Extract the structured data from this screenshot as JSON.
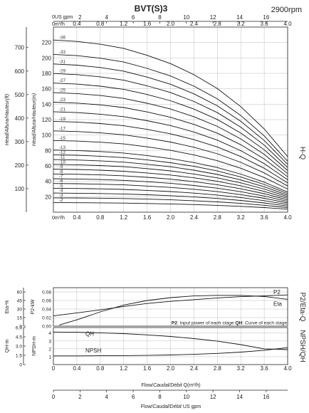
{
  "page": {
    "title": "BVT(S)3",
    "speed": "2900rpm"
  },
  "chart_data": [
    {
      "type": "line",
      "name": "H-Q",
      "side_label": "H-Q",
      "x_units_label": "0m³/h",
      "x_secondary_units_label": "0US gpm",
      "ylabel_metric": "Head/Altura/Hauteur(m)",
      "ylabel_imperial": "Head/Altura/Hauteur(ft)",
      "xlim": [
        0,
        4.0
      ],
      "ylim": [
        0,
        240
      ],
      "ylim_ft": [
        0,
        787
      ],
      "x_ticks": [
        "0.4",
        "0.8",
        "1.2",
        "1.6",
        "2.0",
        "2.4",
        "2.8",
        "3.2",
        "3.6",
        "4.0"
      ],
      "gpm_ticks": [
        "2",
        "4",
        "6",
        "8",
        "10",
        "12",
        "14",
        "16"
      ],
      "gpm_tick_values": [
        2,
        4,
        6,
        8,
        10,
        12,
        14,
        16
      ],
      "y_ticks": [
        20,
        40,
        60,
        80,
        100,
        120,
        140,
        160,
        180,
        200,
        220
      ],
      "ft_ticks": [
        100,
        200,
        300,
        400,
        500,
        600,
        700
      ],
      "grid": true,
      "head_per_stage": {
        "q": [
          0,
          0.4,
          0.8,
          1.2,
          1.6,
          2.0,
          2.4,
          2.8,
          3.2,
          3.6,
          4.0
        ],
        "h": [
          6.2,
          6.15,
          6.05,
          5.9,
          5.65,
          5.35,
          4.95,
          4.45,
          3.8,
          3.0,
          2.0
        ]
      },
      "stages": [
        "-2",
        "-3",
        "-4",
        "-5",
        "-6",
        "-7",
        "-8",
        "-9",
        "-10",
        "-11",
        "-12",
        "-13",
        "-15",
        "-17",
        "-19",
        "-21",
        "-23",
        "-25",
        "-27",
        "-29",
        "-31",
        "-33",
        "-36"
      ]
    },
    {
      "type": "line",
      "name": "P2/Eta-Q",
      "side_label": "P2/Eta-Q",
      "ylabel_eta": "Eta-%",
      "ylabel_p2": "P2-kW",
      "eta_ticks": [
        0,
        15,
        30,
        45,
        60
      ],
      "p2_ticks": [
        "0.00",
        "0.02",
        "0.04",
        "0.06",
        "0.08"
      ],
      "ylim_p2": [
        0,
        0.09
      ],
      "ylim_eta": [
        0,
        67.5
      ],
      "note_p2_key": "P2",
      "note_p2_text": ": Input power of each stage",
      "note_qh_key": "QH",
      "note_qh_text": ": Curve of each stage",
      "series": [
        {
          "name": "P2",
          "x": [
            0,
            0.4,
            0.8,
            1.2,
            1.6,
            2.0,
            2.4,
            2.8,
            3.2,
            3.6,
            4.0
          ],
          "y": [
            0.024,
            0.031,
            0.038,
            0.046,
            0.053,
            0.058,
            0.062,
            0.066,
            0.069,
            0.071,
            0.073
          ]
        },
        {
          "name": "Eta",
          "x": [
            0.1,
            0.4,
            0.8,
            1.2,
            1.6,
            2.0,
            2.4,
            2.8,
            3.2,
            3.6,
            4.0
          ],
          "y": [
            2,
            11,
            25,
            37,
            45,
            50,
            53,
            54,
            54,
            52,
            47
          ]
        }
      ]
    },
    {
      "type": "line",
      "name": "NPSH/QH",
      "side_label": "NPSH/QH",
      "ylabel_qh": "QH-m",
      "ylabel_npsh": "NPSH-m",
      "ylim": [
        0,
        4.7
      ],
      "npsh_ticks": [
        1,
        2,
        3,
        4
      ],
      "qh_ticks": [
        "0",
        "1.5",
        "3.0",
        "4.5",
        "6.0"
      ],
      "x_ticks": [
        "0",
        "0.4",
        "0.8",
        "1.2",
        "1.6",
        "2.0",
        "2.4",
        "2.8",
        "3.2",
        "3.6",
        "4.0"
      ],
      "xlabel_flow": "Flow/",
      "xlabel_caudal": "Caudal/Débit",
      "xlabel_q": " Q(m³/h)",
      "xlabel_gpm": " US gpm",
      "gpm_ticks": [
        "0",
        "2",
        "4",
        "6",
        "8",
        "10",
        "12",
        "14",
        "16"
      ],
      "gpm_tick_values": [
        0,
        2,
        4,
        6,
        8,
        10,
        12,
        14,
        16
      ],
      "series": [
        {
          "name": "QH",
          "x": [
            0,
            0.4,
            0.8,
            1.2,
            1.6,
            2.0,
            2.4,
            2.8,
            3.2,
            3.6,
            4.0
          ],
          "y": [
            4.13,
            4.1,
            4.03,
            3.93,
            3.77,
            3.57,
            3.3,
            2.97,
            2.53,
            2.0,
            1.9
          ]
        },
        {
          "name": "NPSH",
          "x": [
            0,
            0.4,
            0.8,
            1.2,
            1.6,
            2.0,
            2.4,
            2.8,
            3.2,
            3.6,
            4.0
          ],
          "y": [
            1.1,
            1.1,
            1.12,
            1.14,
            1.17,
            1.22,
            1.3,
            1.42,
            1.58,
            1.82,
            2.15
          ]
        }
      ]
    }
  ]
}
